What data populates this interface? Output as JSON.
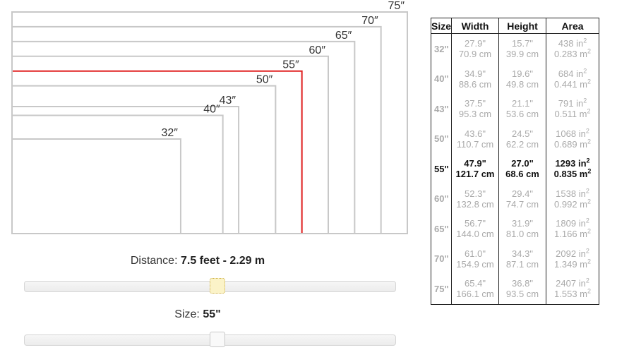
{
  "diagram": {
    "sizes": [
      {
        "label": "32″",
        "inches": 32
      },
      {
        "label": "40″",
        "inches": 40
      },
      {
        "label": "43″",
        "inches": 43
      },
      {
        "label": "50″",
        "inches": 50
      },
      {
        "label": "55″",
        "inches": 55,
        "selected": true
      },
      {
        "label": "60″",
        "inches": 60
      },
      {
        "label": "65″",
        "inches": 65
      },
      {
        "label": "70″",
        "inches": 70
      },
      {
        "label": "75″",
        "inches": 75
      }
    ],
    "selected_color": "#e02020",
    "outline_color": "#c8c8c8"
  },
  "distance": {
    "label": "Distance:",
    "value": "7.5 feet - 2.29 m",
    "slider_fraction": 0.52
  },
  "size": {
    "label": "Size:",
    "value": "55\"",
    "slider_fraction": 0.52
  },
  "table": {
    "headers": [
      "Size",
      "Width",
      "Height",
      "Area"
    ],
    "rows": [
      {
        "size": "32\"",
        "w_in": "27.9\"",
        "w_cm": "70.9 cm",
        "h_in": "15.7\"",
        "h_cm": "39.9 cm",
        "a_in": "438 in",
        "a_m": "0.283 m",
        "active": false
      },
      {
        "size": "40\"",
        "w_in": "34.9\"",
        "w_cm": "88.6 cm",
        "h_in": "19.6\"",
        "h_cm": "49.8 cm",
        "a_in": "684 in",
        "a_m": "0.441 m",
        "active": false
      },
      {
        "size": "43\"",
        "w_in": "37.5\"",
        "w_cm": "95.3 cm",
        "h_in": "21.1\"",
        "h_cm": "53.6 cm",
        "a_in": "791 in",
        "a_m": "0.511 m",
        "active": false
      },
      {
        "size": "50\"",
        "w_in": "43.6\"",
        "w_cm": "110.7 cm",
        "h_in": "24.5\"",
        "h_cm": "62.2 cm",
        "a_in": "1068 in",
        "a_m": "0.689 m",
        "active": false
      },
      {
        "size": "55\"",
        "w_in": "47.9\"",
        "w_cm": "121.7 cm",
        "h_in": "27.0\"",
        "h_cm": "68.6 cm",
        "a_in": "1293 in",
        "a_m": "0.835 m",
        "active": true
      },
      {
        "size": "60\"",
        "w_in": "52.3\"",
        "w_cm": "132.8 cm",
        "h_in": "29.4\"",
        "h_cm": "74.7 cm",
        "a_in": "1538 in",
        "a_m": "0.992 m",
        "active": false
      },
      {
        "size": "65\"",
        "w_in": "56.7\"",
        "w_cm": "144.0 cm",
        "h_in": "31.9\"",
        "h_cm": "81.0 cm",
        "a_in": "1809 in",
        "a_m": "1.166 m",
        "active": false
      },
      {
        "size": "70\"",
        "w_in": "61.0\"",
        "w_cm": "154.9 cm",
        "h_in": "34.3\"",
        "h_cm": "87.1 cm",
        "a_in": "2092 in",
        "a_m": "1.349 m",
        "active": false
      },
      {
        "size": "75\"",
        "w_in": "65.4\"",
        "w_cm": "166.1 cm",
        "h_in": "36.8\"",
        "h_cm": "93.5 cm",
        "a_in": "2407 in",
        "a_m": "1.553 m",
        "active": false
      }
    ],
    "superscript": "2"
  }
}
